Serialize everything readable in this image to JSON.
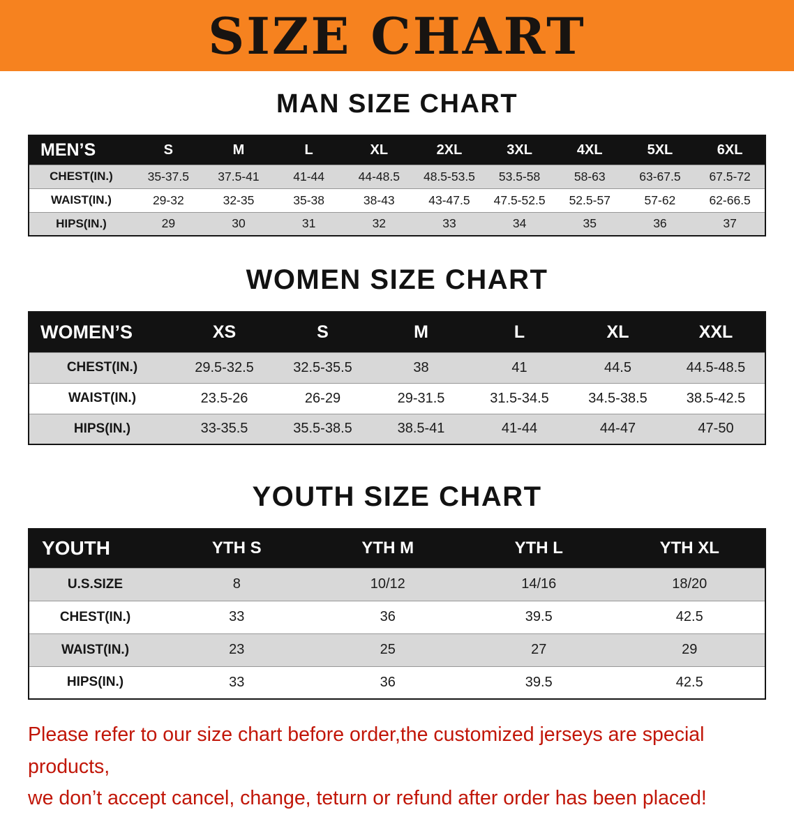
{
  "page": {
    "banner_title": "SIZE CHART",
    "note_line1": "Please refer to our size chart before order,the customized jerseys are special products,",
    "note_line2": "we don’t accept cancel, change, teturn or refund after order has been placed!"
  },
  "colors": {
    "banner_orange": "#F6821F",
    "header_black": "#121212",
    "row_gray": "#D8D8D8",
    "note_red": "#C11608"
  },
  "tables": [
    {
      "id": "men",
      "title": "MAN SIZE CHART",
      "header": [
        "MEN’S",
        "S",
        "M",
        "L",
        "XL",
        "2XL",
        "3XL",
        "4XL",
        "5XL",
        "6XL"
      ],
      "rows": [
        [
          "CHEST(IN.)",
          "35-37.5",
          "37.5-41",
          "41-44",
          "44-48.5",
          "48.5-53.5",
          "53.5-58",
          "58-63",
          "63-67.5",
          "67.5-72"
        ],
        [
          "WAIST(IN.)",
          "29-32",
          "32-35",
          "35-38",
          "38-43",
          "43-47.5",
          "47.5-52.5",
          "52.5-57",
          "57-62",
          "62-66.5"
        ],
        [
          "HIPS(IN.)",
          "29",
          "30",
          "31",
          "32",
          "33",
          "34",
          "35",
          "36",
          "37"
        ]
      ]
    },
    {
      "id": "women",
      "title": "WOMEN SIZE CHART",
      "header": [
        "WOMEN’S",
        "XS",
        "S",
        "M",
        "L",
        "XL",
        "XXL"
      ],
      "rows": [
        [
          "CHEST(IN.)",
          "29.5-32.5",
          "32.5-35.5",
          "38",
          "41",
          "44.5",
          "44.5-48.5"
        ],
        [
          "WAIST(IN.)",
          "23.5-26",
          "26-29",
          "29-31.5",
          "31.5-34.5",
          "34.5-38.5",
          "38.5-42.5"
        ],
        [
          "HIPS(IN.)",
          "33-35.5",
          "35.5-38.5",
          "38.5-41",
          "41-44",
          "44-47",
          "47-50"
        ]
      ]
    },
    {
      "id": "youth",
      "title": "YOUTH SIZE CHART",
      "header": [
        "YOUTH",
        "YTH S",
        "YTH M",
        "YTH L",
        "YTH XL"
      ],
      "rows": [
        [
          "U.S.SIZE",
          "8",
          "10/12",
          "14/16",
          "18/20"
        ],
        [
          "CHEST(IN.)",
          "33",
          "36",
          "39.5",
          "42.5"
        ],
        [
          "WAIST(IN.)",
          "23",
          "25",
          "27",
          "29"
        ],
        [
          "HIPS(IN.)",
          "33",
          "36",
          "39.5",
          "42.5"
        ]
      ]
    }
  ]
}
